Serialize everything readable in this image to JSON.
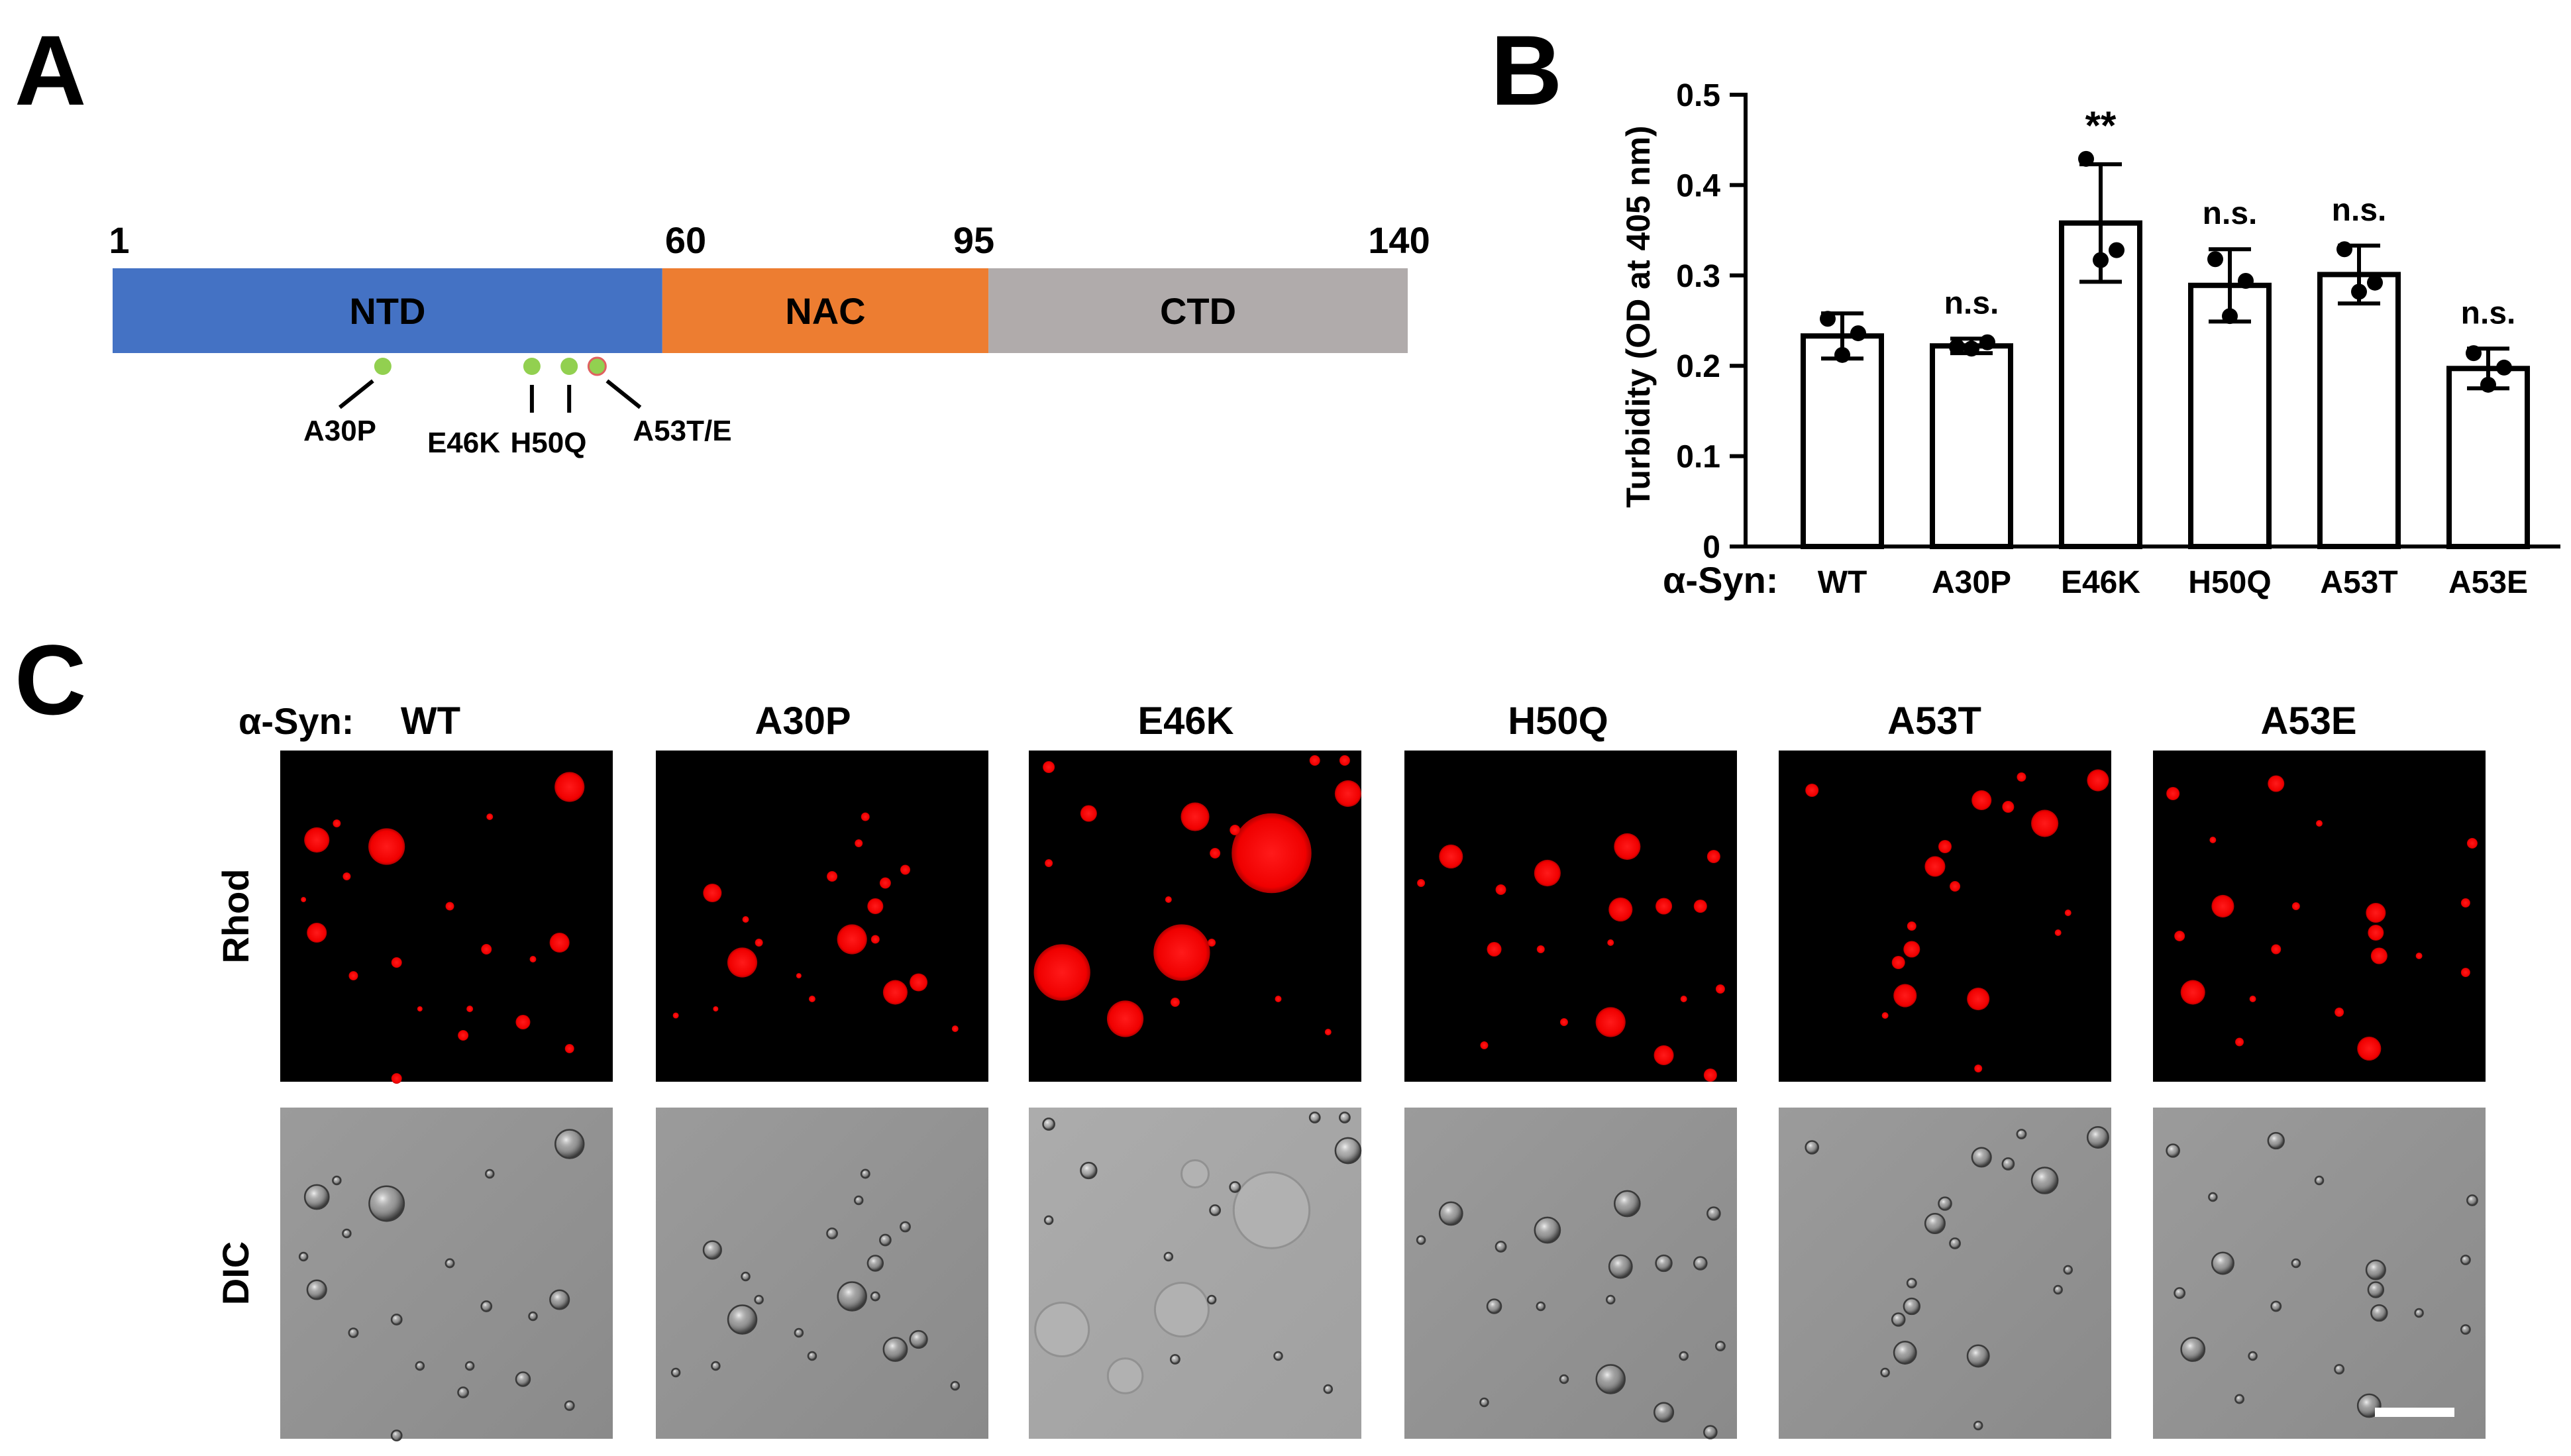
{
  "panel_labels": {
    "a": "A",
    "b": "B",
    "c": "C"
  },
  "domain_map": {
    "positions": {
      "start": "1",
      "nac_start": "60",
      "ctd_start": "95",
      "end": "140"
    },
    "segments": [
      {
        "label": "NTD",
        "from": 1,
        "to": 60,
        "color": "#4472c4"
      },
      {
        "label": "NAC",
        "from": 60,
        "to": 95,
        "color": "#ed7d31"
      },
      {
        "label": "CTD",
        "from": 95,
        "to": 140,
        "color": "#b0abab"
      }
    ],
    "mutations": [
      {
        "label": "A30P",
        "residue": 30
      },
      {
        "label": "E46K",
        "residue": 46
      },
      {
        "label": "H50Q",
        "residue": 50
      },
      {
        "label": "A53T/E",
        "residue": 53
      }
    ],
    "mutation_dot_color": "#92d050"
  },
  "chart_data": {
    "type": "bar",
    "ylabel": "Turbidity (OD at 405 nm)",
    "xaxis_prefix": "α-Syn:",
    "categories": [
      "WT",
      "A30P",
      "E46K",
      "H50Q",
      "A53T",
      "A53E"
    ],
    "values": [
      0.233,
      0.222,
      0.358,
      0.289,
      0.301,
      0.197
    ],
    "error": [
      0.025,
      0.008,
      0.065,
      0.04,
      0.032,
      0.022
    ],
    "points": [
      [
        0.252,
        0.212,
        0.236
      ],
      [
        0.221,
        0.219,
        0.226
      ],
      [
        0.429,
        0.317,
        0.328
      ],
      [
        0.318,
        0.255,
        0.294
      ],
      [
        0.329,
        0.282,
        0.292
      ],
      [
        0.214,
        0.179,
        0.198
      ]
    ],
    "significance": [
      "",
      "n.s.",
      "**",
      "n.s.",
      "n.s.",
      "n.s."
    ],
    "ylim": [
      0,
      0.5
    ],
    "yticks": [
      "0",
      "0.1",
      "0.2",
      "0.3",
      "0.4",
      "0.5"
    ],
    "grid": false,
    "bar_fill": "#ffffff",
    "bar_edge": "#000000"
  },
  "microscopy": {
    "header_prefix": "α-Syn:",
    "columns": [
      "WT",
      "A30P",
      "E46K",
      "H50Q",
      "A53T",
      "A53E"
    ],
    "rows": [
      "Rhod",
      "DIC"
    ],
    "fluorescence_color": "#ff0000"
  }
}
